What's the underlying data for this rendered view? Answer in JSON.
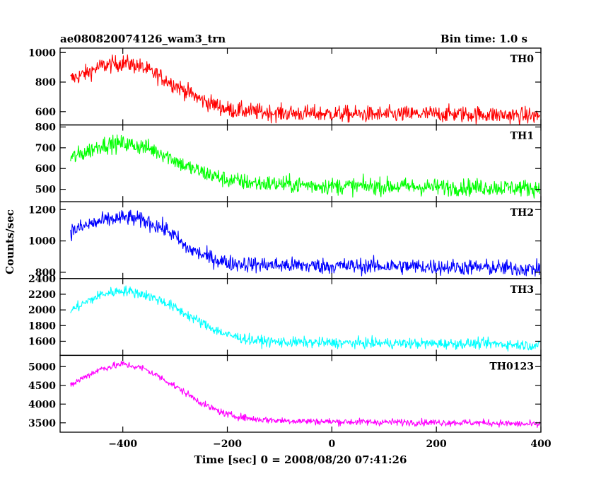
{
  "chart_data": {
    "type": "line",
    "title": "ae080820074126_wam3_trn",
    "subtitle": "Bin time: 1.0 s",
    "xlabel": "Time [sec] 0 = 2008/08/20 07:41:26",
    "ylabel": "Counts/sec",
    "xlim": [
      -520,
      400
    ],
    "x_ticks": [
      -400,
      -200,
      0,
      200,
      400
    ],
    "x_tick_labels": [
      "−400",
      "−200",
      "0",
      "200",
      "400"
    ],
    "x_range_data": [
      -500,
      398
    ],
    "panels": [
      {
        "name": "TH0",
        "color": "#ff0000",
        "ylim": [
          510,
          1030
        ],
        "y_ticks": [
          600,
          800,
          1000
        ],
        "y_tick_labels": [
          "600",
          "800",
          "1000"
        ],
        "profile": [
          [
            -500,
            820
          ],
          [
            -470,
            860
          ],
          [
            -440,
            910
          ],
          [
            -400,
            930
          ],
          [
            -370,
            910
          ],
          [
            -330,
            840
          ],
          [
            -290,
            760
          ],
          [
            -250,
            680
          ],
          [
            -200,
            615
          ],
          [
            -150,
            600
          ],
          [
            -100,
            590
          ],
          [
            0,
            585
          ],
          [
            100,
            580
          ],
          [
            200,
            585
          ],
          [
            300,
            580
          ],
          [
            398,
            570
          ]
        ],
        "noise": 55
      },
      {
        "name": "TH1",
        "color": "#00ff00",
        "ylim": [
          440,
          810
        ],
        "y_ticks": [
          500,
          600,
          700,
          800
        ],
        "y_tick_labels": [
          "500",
          "600",
          "700",
          "800"
        ],
        "profile": [
          [
            -500,
            650
          ],
          [
            -470,
            680
          ],
          [
            -440,
            715
          ],
          [
            -400,
            720
          ],
          [
            -360,
            705
          ],
          [
            -320,
            670
          ],
          [
            -280,
            610
          ],
          [
            -240,
            575
          ],
          [
            -200,
            545
          ],
          [
            -150,
            530
          ],
          [
            -100,
            525
          ],
          [
            0,
            515
          ],
          [
            100,
            515
          ],
          [
            200,
            510
          ],
          [
            300,
            510
          ],
          [
            398,
            505
          ]
        ],
        "noise": 40
      },
      {
        "name": "TH2",
        "color": "#0000ff",
        "ylim": [
          760,
          1250
        ],
        "y_ticks": [
          800,
          1000,
          1200
        ],
        "y_tick_labels": [
          "800",
          "1000",
          "1200"
        ],
        "profile": [
          [
            -500,
            1060
          ],
          [
            -460,
            1110
          ],
          [
            -420,
            1140
          ],
          [
            -390,
            1150
          ],
          [
            -350,
            1120
          ],
          [
            -310,
            1060
          ],
          [
            -280,
            960
          ],
          [
            -240,
            900
          ],
          [
            -200,
            860
          ],
          [
            -150,
            850
          ],
          [
            -100,
            845
          ],
          [
            0,
            840
          ],
          [
            100,
            840
          ],
          [
            200,
            835
          ],
          [
            300,
            830
          ],
          [
            398,
            820
          ]
        ],
        "noise": 50
      },
      {
        "name": "TH3",
        "color": "#00ffff",
        "ylim": [
          1420,
          2400
        ],
        "y_ticks": [
          1600,
          1800,
          2000,
          2200,
          2400
        ],
        "y_tick_labels": [
          "1600",
          "1800",
          "2000",
          "2200",
          "2400"
        ],
        "profile": [
          [
            -500,
            1990
          ],
          [
            -470,
            2100
          ],
          [
            -440,
            2200
          ],
          [
            -400,
            2250
          ],
          [
            -360,
            2200
          ],
          [
            -320,
            2100
          ],
          [
            -280,
            1950
          ],
          [
            -240,
            1800
          ],
          [
            -200,
            1680
          ],
          [
            -150,
            1610
          ],
          [
            -100,
            1590
          ],
          [
            0,
            1580
          ],
          [
            100,
            1575
          ],
          [
            200,
            1570
          ],
          [
            300,
            1570
          ],
          [
            398,
            1545
          ]
        ],
        "noise": 65
      },
      {
        "name": "TH0123",
        "color": "#ff00ff",
        "ylim": [
          3250,
          5300
        ],
        "y_ticks": [
          3500,
          4000,
          4500,
          5000
        ],
        "y_tick_labels": [
          "3500",
          "4000",
          "4500",
          "5000"
        ],
        "profile": [
          [
            -500,
            4500
          ],
          [
            -470,
            4750
          ],
          [
            -440,
            4950
          ],
          [
            -400,
            5070
          ],
          [
            -360,
            4950
          ],
          [
            -320,
            4650
          ],
          [
            -280,
            4300
          ],
          [
            -240,
            3950
          ],
          [
            -200,
            3720
          ],
          [
            -150,
            3600
          ],
          [
            -100,
            3560
          ],
          [
            0,
            3530
          ],
          [
            100,
            3520
          ],
          [
            200,
            3510
          ],
          [
            300,
            3500
          ],
          [
            398,
            3450
          ]
        ],
        "noise": 90
      }
    ]
  }
}
